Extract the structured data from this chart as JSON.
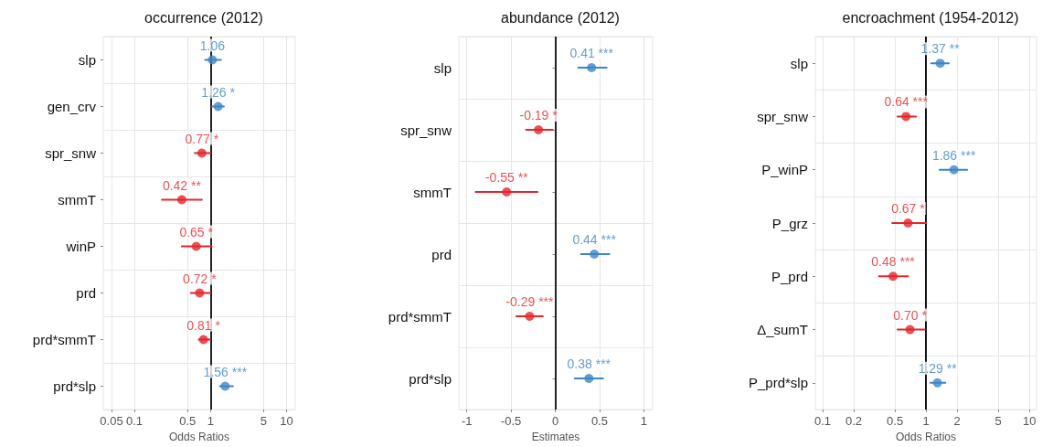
{
  "chart_data": [
    {
      "type": "scatter",
      "orientation": "horizontal",
      "title": "occurrence (2012)",
      "xlabel": "Odds Ratios",
      "log": "x",
      "xlim": [
        0.039,
        13
      ],
      "xticks": [
        0.05,
        0.1,
        0.5,
        1,
        5,
        10
      ],
      "grid": true,
      "marker": "circle",
      "categories": [
        "slp",
        "gen_crv",
        "spr_snw",
        "smmT",
        "winP",
        "prd",
        "prd*smmT",
        "prd*slp"
      ],
      "values": [
        1.06,
        1.26,
        0.77,
        0.42,
        0.65,
        0.72,
        0.81,
        1.56
      ],
      "errors": [
        [
          0.85,
          1.37
        ],
        [
          1.05,
          1.5
        ],
        [
          0.62,
          1.0
        ],
        [
          0.23,
          0.77
        ],
        [
          0.42,
          1.04
        ],
        [
          0.55,
          1.0
        ],
        [
          0.7,
          0.99
        ],
        [
          1.33,
          1.97
        ]
      ],
      "colors": [
        "#3d85c6",
        "#3d85c6",
        "#e3262a",
        "#e3262a",
        "#e3262a",
        "#e3262a",
        "#e3262a",
        "#3d85c6"
      ],
      "value_labels": [
        "1.06",
        "1.26 *",
        "0.77 *",
        "0.42 **",
        "0.65 *",
        "0.72 *",
        "0.81 *",
        "1.56 ***"
      ],
      "ref_lines": [
        {
          "axis": "x",
          "value": 1,
          "color": "#222222"
        }
      ]
    },
    {
      "type": "scatter",
      "orientation": "horizontal",
      "title": "abundance (2012)",
      "xlabel": "Estimates",
      "xlim": [
        -1.09,
        1.1
      ],
      "xticks": [
        -1,
        -0.5,
        0,
        0.5,
        1
      ],
      "grid": true,
      "marker": "circle",
      "categories": [
        "slp",
        "spr_snw",
        "smmT",
        "prd",
        "prd*smmT",
        "prd*slp"
      ],
      "values": [
        0.41,
        -0.19,
        -0.55,
        0.44,
        -0.29,
        0.38
      ],
      "errors": [
        [
          0.26,
          0.58
        ],
        [
          -0.33,
          -0.03
        ],
        [
          -0.9,
          -0.2
        ],
        [
          0.29,
          0.61
        ],
        [
          -0.44,
          -0.14
        ],
        [
          0.22,
          0.54
        ]
      ],
      "colors": [
        "#3d85c6",
        "#e3262a",
        "#e3262a",
        "#3d85c6",
        "#e3262a",
        "#3d85c6"
      ],
      "value_labels": [
        "0.41 ***",
        "-0.19 *",
        "-0.55 **",
        "0.44 ***",
        "-0.29 ***",
        "0.38 ***"
      ],
      "ref_lines": [
        {
          "axis": "x",
          "value": 0,
          "color": "#222222"
        }
      ]
    },
    {
      "type": "scatter",
      "orientation": "horizontal",
      "title": "encroachment (1954-2012)",
      "xlabel": "Odds Ratios",
      "log": "x",
      "xlim": [
        0.085,
        11.7
      ],
      "xticks": [
        0.1,
        0.2,
        0.5,
        1,
        2,
        5,
        10
      ],
      "grid": true,
      "marker": "circle",
      "categories": [
        "slp",
        "spr_snw",
        "P_winP",
        "P_grz",
        "P_prd",
        "Δ_sumT",
        "P_prd*slp"
      ],
      "values": [
        1.37,
        0.64,
        1.86,
        0.67,
        0.48,
        0.7,
        1.29
      ],
      "errors": [
        [
          1.12,
          1.66
        ],
        [
          0.53,
          0.8
        ],
        [
          1.35,
          2.5
        ],
        [
          0.47,
          1.0
        ],
        [
          0.35,
          0.67
        ],
        [
          0.53,
          0.97
        ],
        [
          1.1,
          1.54
        ]
      ],
      "colors": [
        "#3d85c6",
        "#e3262a",
        "#3d85c6",
        "#e3262a",
        "#e3262a",
        "#e3262a",
        "#3d85c6"
      ],
      "value_labels": [
        "1.37 **",
        "0.64 ***",
        "1.86 ***",
        "0.67 *",
        "0.48 ***",
        "0.70 *",
        "1.29 **"
      ],
      "ref_lines": [
        {
          "axis": "x",
          "value": 1,
          "color": "#111111"
        }
      ]
    }
  ]
}
